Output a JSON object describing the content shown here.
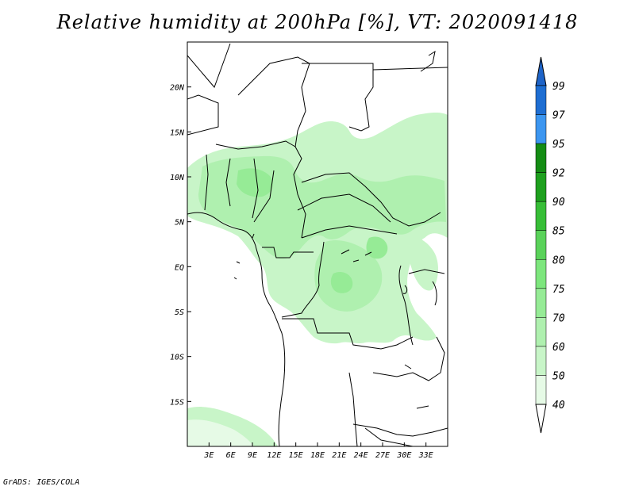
{
  "title": "Relative humidity at 200hPa [%], VT: 2020091418",
  "footer": "GrADS: IGES/COLA",
  "map": {
    "lon_range": [
      0,
      36
    ],
    "lat_range": [
      -20,
      25
    ],
    "lon_ticks": [
      {
        "value": 3,
        "label": "3E"
      },
      {
        "value": 6,
        "label": "6E"
      },
      {
        "value": 9,
        "label": "9E"
      },
      {
        "value": 12,
        "label": "12E"
      },
      {
        "value": 15,
        "label": "15E"
      },
      {
        "value": 18,
        "label": "18E"
      },
      {
        "value": 21,
        "label": "21E"
      },
      {
        "value": 24,
        "label": "24E"
      },
      {
        "value": 27,
        "label": "27E"
      },
      {
        "value": 30,
        "label": "30E"
      },
      {
        "value": 33,
        "label": "33E"
      }
    ],
    "lat_ticks": [
      {
        "value": 20,
        "label": "20N"
      },
      {
        "value": 15,
        "label": "15N"
      },
      {
        "value": 10,
        "label": "10N"
      },
      {
        "value": 5,
        "label": "5N"
      },
      {
        "value": 0,
        "label": "EQ"
      },
      {
        "value": -5,
        "label": "5S"
      },
      {
        "value": -10,
        "label": "10S"
      },
      {
        "value": -15,
        "label": "15S"
      }
    ]
  },
  "colorbar": {
    "levels": [
      {
        "label": "40",
        "color": "#ffffff"
      },
      {
        "label": "50",
        "color": "#e6fae6"
      },
      {
        "label": "60",
        "color": "#c8f5c8"
      },
      {
        "label": "70",
        "color": "#aff0af"
      },
      {
        "label": "75",
        "color": "#96eb96"
      },
      {
        "label": "80",
        "color": "#7de67d"
      },
      {
        "label": "85",
        "color": "#5ad25a"
      },
      {
        "label": "90",
        "color": "#37be37"
      },
      {
        "label": "92",
        "color": "#1ea01e"
      },
      {
        "label": "95",
        "color": "#148c14"
      },
      {
        "label": "97",
        "color": "#3c96f0"
      },
      {
        "label": "99",
        "color": "#1e6ed2"
      }
    ],
    "top_color": "#1e64c8"
  }
}
